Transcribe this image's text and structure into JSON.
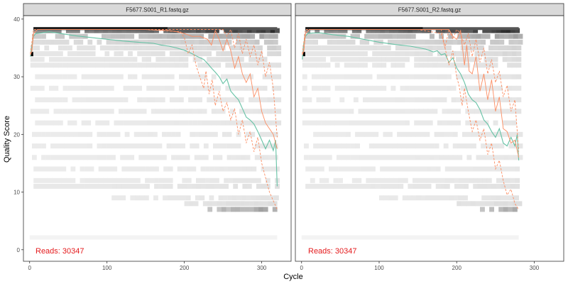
{
  "figure": {
    "ylabel": "Quality Score",
    "xlabel": "Cycle"
  },
  "colors": {
    "strip_fill": "#d9d9d9",
    "strip_border": "#333333",
    "panel_border": "#333333",
    "mean_line": "#66c2a5",
    "quantile_line": "#fc8d62",
    "reads_text": "#e41a1c",
    "heat_dark": "#000000",
    "heat_light": "#f2f2f2",
    "axis_text": "#4d4d4d"
  },
  "chart_data": [
    {
      "type": "line",
      "title": "F5677.S001_R1.fastq.gz",
      "reads_label": "Reads:  30347",
      "xlabel": "Cycle",
      "ylabel": "Quality Score",
      "xlim": [
        -8,
        338
      ],
      "ylim": [
        -2,
        40.6
      ],
      "xticks": [
        0,
        100,
        200,
        300
      ],
      "yticks": [
        0,
        10,
        20,
        30,
        40
      ],
      "grid": false,
      "max_cycle": 320,
      "series": [
        {
          "key": "mean",
          "style": "solid",
          "x": [
            1,
            2,
            3,
            5,
            8,
            15,
            25,
            40,
            60,
            80,
            100,
            120,
            140,
            160,
            170,
            180,
            190,
            200,
            210,
            220,
            225,
            230,
            235,
            240,
            245,
            250,
            255,
            260,
            265,
            270,
            275,
            280,
            285,
            290,
            295,
            300,
            305,
            310,
            315,
            318,
            320
          ],
          "y": [
            33.5,
            34.5,
            35.5,
            37.0,
            37.5,
            37.6,
            37.8,
            37.5,
            37.1,
            36.8,
            36.5,
            36.2,
            36.0,
            35.8,
            35.5,
            35.3,
            35.0,
            34.6,
            34.0,
            33.3,
            33.0,
            32.3,
            31.5,
            30.8,
            30.0,
            28.8,
            29.6,
            27.5,
            26.7,
            26.0,
            24.5,
            23.0,
            22.5,
            21.8,
            20.5,
            19.0,
            17.5,
            19.0,
            17.2,
            19.0,
            11.0
          ]
        },
        {
          "key": "q25",
          "style": "dashed",
          "x": [
            1,
            3,
            5,
            10,
            50,
            100,
            150,
            195,
            200,
            205,
            210,
            215,
            220,
            225,
            228,
            232,
            236,
            240,
            245,
            250,
            255,
            260,
            265,
            270,
            275,
            280,
            285,
            290,
            295,
            300,
            305,
            310,
            315,
            320
          ],
          "y": [
            33.8,
            34.5,
            37.5,
            38.2,
            38.2,
            38.2,
            38.2,
            37.8,
            36.8,
            34.0,
            35.5,
            32.0,
            30.0,
            28.0,
            31.0,
            27.0,
            29.5,
            25.0,
            27.5,
            24.0,
            25.5,
            22.5,
            24.5,
            20.0,
            22.5,
            18.5,
            20.5,
            17.0,
            19.5,
            15.0,
            12.5,
            10.0,
            8.5,
            7.0
          ]
        },
        {
          "key": "q50",
          "style": "solid",
          "x": [
            1,
            3,
            5,
            10,
            50,
            100,
            150,
            180,
            190,
            200,
            210,
            220,
            230,
            235,
            240,
            245,
            250,
            255,
            260,
            265,
            270,
            275,
            280,
            285,
            290,
            295,
            300,
            305,
            310,
            315,
            320
          ],
          "y": [
            33.8,
            34.5,
            37.5,
            38.2,
            38.2,
            38.2,
            38.2,
            38.0,
            37.8,
            37.5,
            37.0,
            37.0,
            36.5,
            35.5,
            38.0,
            36.5,
            34.5,
            36.5,
            34.5,
            31.5,
            33.5,
            30.5,
            29.0,
            30.5,
            26.5,
            28.0,
            24.0,
            22.0,
            21.0,
            20.0,
            17.5
          ]
        },
        {
          "key": "q75",
          "style": "dashed",
          "x": [
            1,
            5,
            50,
            100,
            200,
            250,
            255,
            260,
            265,
            270,
            275,
            280,
            285,
            290,
            295,
            300,
            305,
            310,
            315,
            320
          ],
          "y": [
            34.0,
            38.2,
            38.2,
            38.2,
            38.2,
            38.2,
            37.0,
            38.2,
            35.0,
            37.5,
            34.0,
            36.5,
            33.5,
            35.5,
            32.0,
            34.5,
            30.0,
            32.5,
            28.0,
            19.5
          ]
        }
      ]
    },
    {
      "type": "line",
      "title": "F5677.S001_R2.fastq.gz",
      "reads_label": "Reads:  30347",
      "xlabel": "Cycle",
      "ylabel": "Quality Score",
      "xlim": [
        -8,
        338
      ],
      "ylim": [
        -2,
        40.6
      ],
      "xticks": [
        0,
        100,
        200,
        300
      ],
      "yticks": [
        0,
        10,
        20,
        30,
        40
      ],
      "grid": false,
      "max_cycle": 280,
      "series": [
        {
          "key": "mean",
          "style": "solid",
          "x": [
            1,
            2,
            3,
            5,
            8,
            15,
            25,
            40,
            60,
            80,
            100,
            120,
            140,
            160,
            170,
            175,
            180,
            185,
            190,
            195,
            200,
            205,
            210,
            215,
            220,
            225,
            230,
            235,
            240,
            245,
            250,
            255,
            260,
            265,
            270,
            275,
            278,
            280
          ],
          "y": [
            33.0,
            34.5,
            36.0,
            37.0,
            37.5,
            37.6,
            37.6,
            37.3,
            37.0,
            36.5,
            36.0,
            35.6,
            35.3,
            34.8,
            34.3,
            34.5,
            33.8,
            34.0,
            32.5,
            33.3,
            31.5,
            30.5,
            29.0,
            27.0,
            26.0,
            25.5,
            24.3,
            22.5,
            21.8,
            20.5,
            19.5,
            21.0,
            18.5,
            18.0,
            19.5,
            18.0,
            20.0,
            15.5
          ]
        },
        {
          "key": "q25",
          "style": "dashed",
          "x": [
            1,
            3,
            5,
            10,
            50,
            100,
            150,
            180,
            185,
            190,
            195,
            200,
            203,
            207,
            210,
            215,
            220,
            225,
            230,
            235,
            240,
            245,
            250,
            255,
            260,
            265,
            270,
            275,
            280
          ],
          "y": [
            33.8,
            34.5,
            37.5,
            38.2,
            38.2,
            38.2,
            38.2,
            37.5,
            35.0,
            32.0,
            34.5,
            30.0,
            28.5,
            25.0,
            28.0,
            24.0,
            20.5,
            22.5,
            19.0,
            21.0,
            16.5,
            18.5,
            14.0,
            15.5,
            12.0,
            9.5,
            10.5,
            8.0,
            7.0
          ]
        },
        {
          "key": "q50",
          "style": "solid",
          "x": [
            1,
            3,
            5,
            10,
            50,
            100,
            150,
            190,
            195,
            200,
            205,
            210,
            213,
            216,
            220,
            225,
            230,
            235,
            240,
            245,
            250,
            255,
            260,
            265,
            270,
            275,
            280
          ],
          "y": [
            33.8,
            34.5,
            37.5,
            38.2,
            38.2,
            38.2,
            38.2,
            38.2,
            37.0,
            36.5,
            38.0,
            32.0,
            35.5,
            31.0,
            30.5,
            33.5,
            27.5,
            30.5,
            26.0,
            29.5,
            24.0,
            26.5,
            21.0,
            20.5,
            18.5,
            19.0,
            16.0
          ]
        },
        {
          "key": "q75",
          "style": "dashed",
          "x": [
            1,
            5,
            50,
            100,
            180,
            185,
            190,
            195,
            200,
            205,
            210,
            215,
            220,
            225,
            230,
            235,
            240,
            245,
            250,
            255,
            260,
            265,
            270,
            275,
            280
          ],
          "y": [
            34.0,
            38.2,
            38.2,
            38.2,
            38.2,
            35.0,
            38.2,
            36.5,
            38.2,
            37.5,
            35.5,
            37.5,
            33.5,
            36.5,
            32.5,
            35.0,
            30.5,
            33.0,
            29.0,
            31.0,
            26.5,
            28.5,
            24.0,
            26.0,
            17.0
          ]
        }
      ]
    }
  ]
}
